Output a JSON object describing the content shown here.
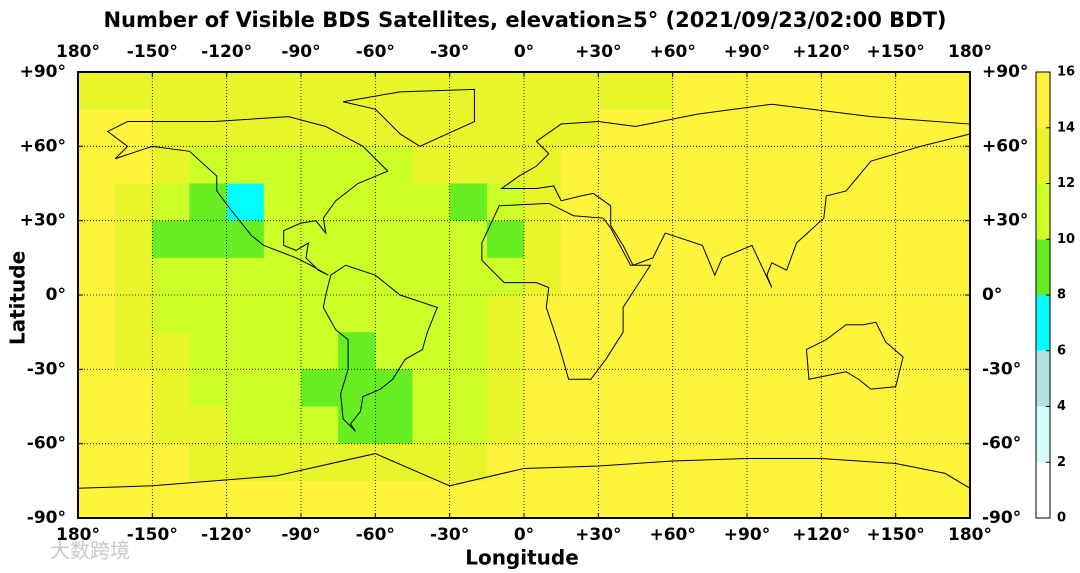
{
  "chart_data": {
    "type": "heatmap",
    "title": "Number of Visible BDS Satellites, elevation≥5° (2021/09/23/02:00 BDT)",
    "x_label": "Longitude",
    "y_label": "Latitude",
    "watermark": "大数跨境",
    "xlim": [
      -180,
      180
    ],
    "ylim": [
      -90,
      90
    ],
    "xticks": [
      {
        "value": -180,
        "label": "180°"
      },
      {
        "value": -150,
        "label": "-150°"
      },
      {
        "value": -120,
        "label": "-120°"
      },
      {
        "value": -90,
        "label": "-90°"
      },
      {
        "value": -60,
        "label": "-60°"
      },
      {
        "value": -30,
        "label": "-30°"
      },
      {
        "value": 0,
        "label": "0°"
      },
      {
        "value": 30,
        "label": "+30°"
      },
      {
        "value": 60,
        "label": "+60°"
      },
      {
        "value": 90,
        "label": "+90°"
      },
      {
        "value": 120,
        "label": "+120°"
      },
      {
        "value": 150,
        "label": "+150°"
      },
      {
        "value": 180,
        "label": "180°"
      }
    ],
    "yticks": [
      {
        "value": 90,
        "label": "+90°"
      },
      {
        "value": 60,
        "label": "+60°"
      },
      {
        "value": 30,
        "label": "+30°"
      },
      {
        "value": 0,
        "label": "0°"
      },
      {
        "value": -30,
        "label": "-30°"
      },
      {
        "value": -60,
        "label": "-60°"
      },
      {
        "value": -90,
        "label": "-90°"
      }
    ],
    "grid": true,
    "colorbar_ticks": [
      0,
      2,
      4,
      6,
      8,
      10,
      12,
      14,
      16
    ],
    "colorbar_colors": [
      "#ffffff",
      "#d6fbfb",
      "#b0e2e2",
      "#00ffff",
      "#66ee22",
      "#ccff28",
      "#e8f52a",
      "#fff43c"
    ],
    "z": [
      [
        13,
        13,
        13,
        13,
        13,
        13,
        13,
        13,
        13,
        13,
        13,
        13,
        13,
        13,
        13,
        13,
        15,
        15,
        15,
        15,
        15,
        15,
        15,
        15
      ],
      [
        15,
        15,
        13,
        13,
        13,
        13,
        13,
        13,
        13,
        13,
        13,
        13,
        13,
        13,
        15,
        15,
        15,
        15,
        15,
        15,
        15,
        15,
        15,
        15
      ],
      [
        15,
        15,
        13,
        11,
        11,
        11,
        11,
        11,
        11,
        13,
        13,
        13,
        13,
        15,
        15,
        15,
        15,
        15,
        15,
        15,
        15,
        15,
        15,
        15
      ],
      [
        15,
        13,
        11,
        9,
        7,
        11,
        11,
        11,
        11,
        11,
        9,
        11,
        13,
        15,
        15,
        15,
        15,
        15,
        15,
        15,
        15,
        15,
        15,
        15
      ],
      [
        15,
        13,
        9,
        9,
        9,
        11,
        11,
        11,
        11,
        11,
        11,
        9,
        13,
        15,
        15,
        15,
        15,
        15,
        15,
        15,
        15,
        15,
        15,
        15
      ],
      [
        15,
        13,
        11,
        11,
        11,
        11,
        11,
        11,
        11,
        11,
        11,
        11,
        13,
        15,
        15,
        15,
        15,
        15,
        15,
        15,
        15,
        15,
        15,
        15
      ],
      [
        15,
        13,
        11,
        11,
        11,
        11,
        11,
        11,
        11,
        11,
        11,
        13,
        15,
        15,
        15,
        15,
        15,
        15,
        15,
        15,
        15,
        15,
        15,
        15
      ],
      [
        15,
        13,
        13,
        11,
        11,
        11,
        11,
        9,
        11,
        11,
        11,
        13,
        15,
        15,
        15,
        15,
        15,
        15,
        15,
        15,
        15,
        15,
        15,
        15
      ],
      [
        15,
        15,
        13,
        11,
        11,
        11,
        9,
        9,
        9,
        11,
        11,
        13,
        15,
        15,
        15,
        15,
        15,
        15,
        15,
        15,
        15,
        15,
        15,
        15
      ],
      [
        15,
        15,
        13,
        13,
        11,
        11,
        11,
        9,
        9,
        11,
        11,
        13,
        15,
        15,
        15,
        15,
        15,
        15,
        15,
        15,
        15,
        15,
        15,
        15
      ],
      [
        15,
        15,
        15,
        13,
        13,
        13,
        13,
        13,
        13,
        13,
        13,
        15,
        15,
        15,
        15,
        15,
        15,
        15,
        15,
        15,
        15,
        15,
        15,
        15
      ],
      [
        15,
        15,
        15,
        15,
        15,
        15,
        15,
        15,
        15,
        15,
        15,
        15,
        15,
        15,
        15,
        15,
        15,
        15,
        15,
        15,
        15,
        15,
        15,
        15
      ]
    ]
  }
}
